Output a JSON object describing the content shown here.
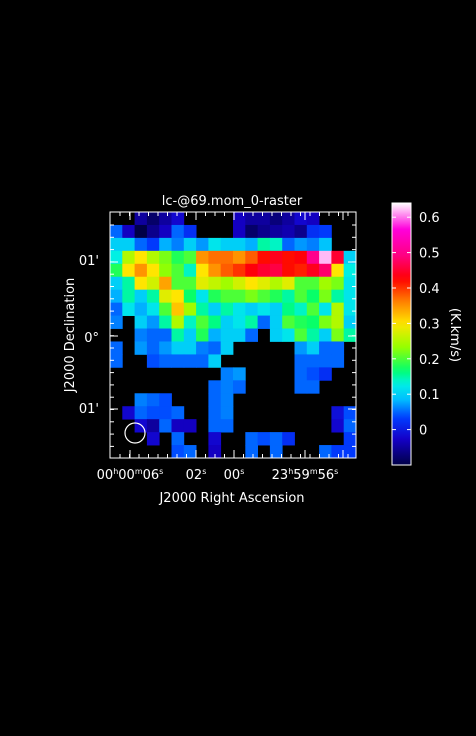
{
  "chart_data": {
    "type": "heatmap",
    "title": "lc-@69.mom_0-raster",
    "xlabel": "J2000 Right Ascension",
    "ylabel": "J2000 Declination",
    "x_tick_labels": [
      {
        "label": "00h00m06s"
      },
      {
        "label": "02s"
      },
      {
        "label": "00s"
      },
      {
        "label": "23h59m56s"
      }
    ],
    "y_tick_labels": [
      "01'",
      "0°",
      "01'"
    ],
    "colorbar": {
      "label": "(K.km/s)",
      "range": [
        -0.1,
        0.64
      ],
      "ticks": [
        "0.6",
        "0.5",
        "0.4",
        "0.3",
        "0.2",
        "0.1",
        "0"
      ],
      "tick_values": [
        0.6,
        0.5,
        0.4,
        0.3,
        0.2,
        0.1,
        0.0
      ]
    },
    "grid": false,
    "beam": "circle-bottom-left",
    "grid_size": {
      "cols": 20,
      "rows": 19
    },
    "rows": [
      [
        null,
        null,
        -0.05,
        -0.08,
        -0.05,
        -0.02,
        null,
        null,
        null,
        null,
        -0.03,
        -0.05,
        -0.05,
        -0.07,
        -0.05,
        -0.02,
        -0.03,
        null,
        null,
        null
      ],
      [
        0.05,
        -0.03,
        -0.1,
        -0.06,
        -0.03,
        0.05,
        0.02,
        null,
        null,
        null,
        -0.03,
        -0.08,
        -0.06,
        -0.05,
        -0.04,
        -0.06,
        0.02,
        0.03,
        null,
        null
      ],
      [
        0.1,
        0.1,
        0.05,
        0.03,
        0.08,
        0.06,
        0.1,
        0.07,
        0.12,
        0.1,
        0.1,
        0.08,
        0.15,
        0.14,
        0.05,
        0.07,
        0.06,
        0.09,
        null,
        null
      ],
      [
        0.13,
        0.25,
        0.3,
        0.25,
        0.22,
        0.18,
        0.2,
        0.35,
        0.37,
        0.37,
        0.35,
        0.38,
        0.42,
        0.44,
        0.42,
        0.43,
        0.5,
        0.62,
        0.45,
        0.1
      ],
      [
        0.18,
        0.3,
        0.35,
        0.3,
        0.23,
        0.2,
        0.14,
        0.3,
        0.35,
        0.38,
        0.4,
        0.43,
        0.45,
        0.46,
        0.42,
        0.41,
        0.44,
        0.48,
        0.3,
        0.13
      ],
      [
        0.1,
        0.15,
        0.3,
        0.27,
        0.34,
        0.2,
        0.2,
        0.28,
        0.26,
        0.24,
        0.27,
        0.3,
        0.28,
        0.25,
        0.28,
        0.2,
        0.2,
        0.24,
        0.22,
        0.12
      ],
      [
        0.08,
        0.15,
        0.1,
        0.15,
        0.28,
        0.3,
        0.17,
        0.12,
        0.18,
        0.2,
        0.2,
        0.22,
        0.2,
        0.18,
        0.15,
        0.2,
        0.17,
        0.22,
        0.15,
        0.12
      ],
      [
        0.05,
        0.12,
        0.08,
        0.12,
        0.2,
        0.32,
        0.24,
        0.15,
        0.1,
        0.15,
        0.12,
        0.1,
        0.12,
        0.1,
        0.16,
        0.14,
        0.2,
        0.12,
        0.25,
        0.12
      ],
      [
        0.06,
        null,
        0.1,
        0.07,
        0.15,
        0.25,
        0.14,
        0.2,
        0.16,
        0.1,
        0.12,
        0.15,
        0.05,
        0.1,
        0.2,
        0.18,
        0.17,
        0.22,
        0.25,
        0.1
      ],
      [
        null,
        null,
        0.06,
        0.05,
        0.05,
        0.15,
        0.1,
        0.18,
        0.08,
        0.1,
        0.1,
        0.05,
        null,
        0.1,
        0.12,
        0.2,
        0.15,
        0.1,
        0.22,
        0.15
      ],
      [
        0.05,
        null,
        0.07,
        0.05,
        0.07,
        0.1,
        0.1,
        0.06,
        0.05,
        0.1,
        null,
        null,
        null,
        null,
        null,
        0.07,
        0.1,
        0.05,
        0.05,
        null
      ],
      [
        0.05,
        null,
        null,
        0.04,
        0.05,
        0.05,
        0.05,
        0.05,
        0.1,
        null,
        null,
        null,
        null,
        null,
        null,
        0.05,
        0.05,
        0.05,
        0.05,
        null
      ],
      [
        null,
        null,
        null,
        null,
        null,
        null,
        null,
        null,
        null,
        0.06,
        0.07,
        null,
        null,
        null,
        null,
        0.05,
        0.04,
        0.02,
        null,
        null
      ],
      [
        null,
        null,
        null,
        null,
        null,
        null,
        null,
        null,
        0.05,
        0.06,
        0.05,
        null,
        null,
        null,
        null,
        0.05,
        0.05,
        null,
        null,
        null
      ],
      [
        null,
        null,
        0.06,
        0.05,
        0.04,
        null,
        null,
        null,
        0.05,
        0.06,
        null,
        null,
        null,
        null,
        null,
        null,
        null,
        null,
        null,
        null
      ],
      [
        null,
        -0.02,
        0.05,
        0.04,
        0.04,
        0.05,
        null,
        null,
        0.05,
        0.06,
        null,
        null,
        null,
        null,
        null,
        null,
        null,
        null,
        -0.01,
        0.04
      ],
      [
        null,
        null,
        -0.02,
        -0.05,
        0.05,
        -0.03,
        -0.03,
        null,
        0.05,
        0.05,
        null,
        null,
        null,
        null,
        null,
        null,
        null,
        null,
        -0.02,
        0.05
      ],
      [
        null,
        null,
        null,
        -0.02,
        null,
        0.05,
        null,
        null,
        -0.02,
        null,
        null,
        0.05,
        0.04,
        0.05,
        0.02,
        null,
        null,
        null,
        null,
        0.03
      ],
      [
        null,
        null,
        null,
        null,
        null,
        0.04,
        0.05,
        null,
        -0.03,
        null,
        null,
        0.05,
        null,
        0.05,
        null,
        null,
        null,
        0.05,
        0.03,
        0.03
      ]
    ]
  }
}
